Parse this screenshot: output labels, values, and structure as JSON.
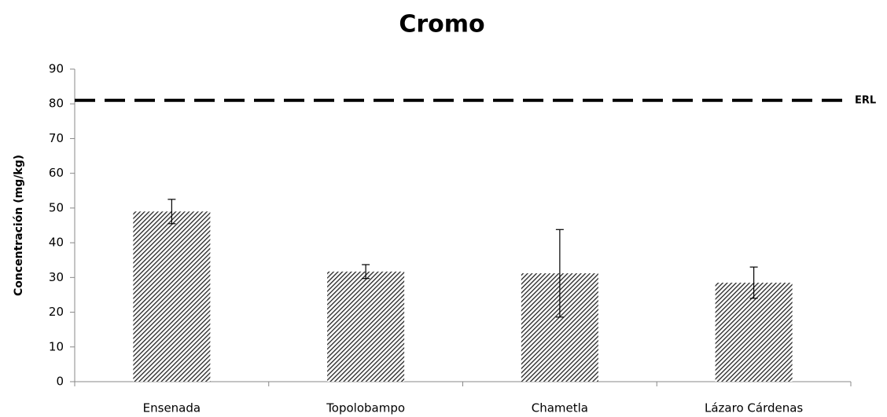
{
  "chart_data": {
    "type": "bar",
    "title": "Cromo",
    "y_label": "Concentración (mg/kg)",
    "categories": [
      "Ensenada",
      "Topolobampo",
      "Chametla",
      "Lázaro Cárdenas"
    ],
    "values": [
      49,
      31.7,
      31.2,
      28.5
    ],
    "errors": [
      3.5,
      2,
      12.6,
      4.5
    ],
    "color": "#222222",
    "ylim": [
      0,
      90
    ],
    "yticks": [
      0,
      10,
      20,
      30,
      40,
      50,
      60,
      70,
      80,
      90
    ],
    "reference_lines": [
      {
        "value": 81,
        "label": "ERL"
      }
    ]
  }
}
